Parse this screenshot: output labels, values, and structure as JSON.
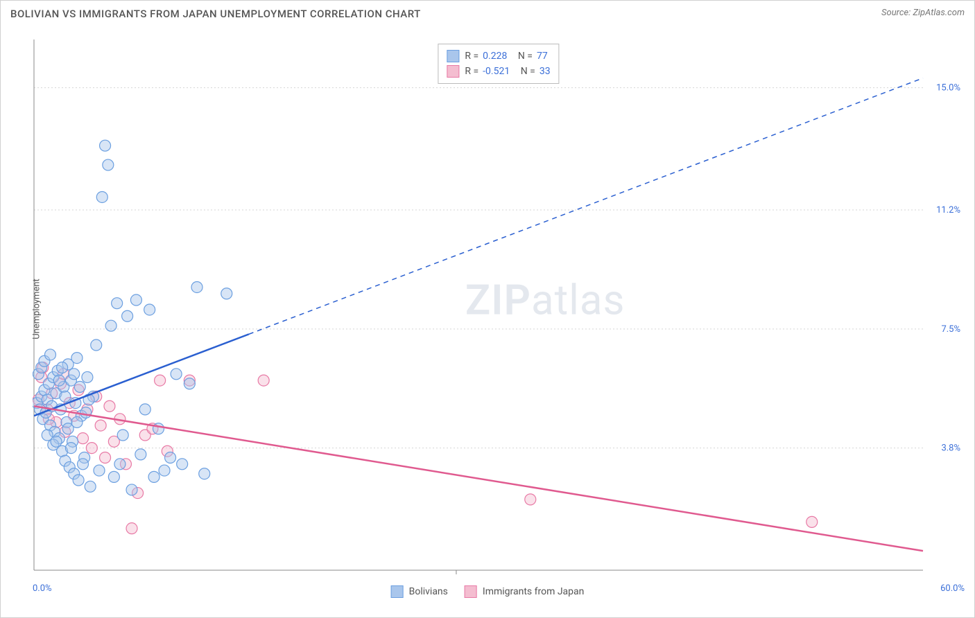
{
  "header": {
    "title": "BOLIVIAN VS IMMIGRANTS FROM JAPAN UNEMPLOYMENT CORRELATION CHART",
    "source_prefix": "Source: ",
    "source_name": "ZipAtlas.com"
  },
  "watermark": {
    "left": "ZIP",
    "right": "atlas"
  },
  "chart": {
    "type": "scatter-with-trend",
    "background_color": "#ffffff",
    "grid_color": "#d5d5d5",
    "axis_color": "#888888",
    "y_axis_label": "Unemployment",
    "xlim": [
      0,
      60
    ],
    "ylim": [
      0,
      16.5
    ],
    "x_ticks_pct": [
      0,
      60
    ],
    "x_tick_labels": [
      "0.0%",
      "60.0%"
    ],
    "y_ticks_pct": [
      3.8,
      7.5,
      11.2,
      15.0
    ],
    "y_tick_labels": [
      "3.8%",
      "7.5%",
      "11.2%",
      "15.0%"
    ],
    "x_minor_tick_at": 28.5,
    "marker_radius": 8,
    "series": [
      {
        "key": "bolivians",
        "name": "Bolivians",
        "fill": "#a9c6ec",
        "stroke": "#6b9fe0",
        "trend_color": "#2a5fd0",
        "r_label": "R  =",
        "r_value": "0.228",
        "n_label": "N  =",
        "n_value": "77",
        "trend": {
          "x1": 0,
          "y1": 4.8,
          "x2": 60,
          "y2": 15.3,
          "solid_until_x": 14.5
        },
        "points": [
          [
            0.2,
            5.2
          ],
          [
            0.4,
            5.0
          ],
          [
            0.5,
            5.4
          ],
          [
            0.6,
            4.7
          ],
          [
            0.7,
            5.6
          ],
          [
            0.8,
            4.9
          ],
          [
            0.9,
            5.3
          ],
          [
            1.0,
            5.8
          ],
          [
            1.1,
            4.5
          ],
          [
            1.2,
            5.1
          ],
          [
            1.3,
            6.0
          ],
          [
            1.4,
            4.3
          ],
          [
            1.5,
            5.5
          ],
          [
            1.6,
            6.2
          ],
          [
            1.7,
            4.1
          ],
          [
            1.8,
            5.0
          ],
          [
            1.9,
            3.7
          ],
          [
            2.0,
            5.7
          ],
          [
            2.1,
            3.4
          ],
          [
            2.2,
            4.6
          ],
          [
            2.3,
            6.4
          ],
          [
            2.4,
            3.2
          ],
          [
            2.5,
            5.9
          ],
          [
            2.6,
            4.0
          ],
          [
            2.7,
            3.0
          ],
          [
            2.8,
            5.2
          ],
          [
            2.9,
            6.6
          ],
          [
            3.0,
            2.8
          ],
          [
            3.2,
            4.8
          ],
          [
            3.4,
            3.5
          ],
          [
            3.6,
            6.0
          ],
          [
            3.8,
            2.6
          ],
          [
            4.0,
            5.4
          ],
          [
            4.2,
            7.0
          ],
          [
            4.4,
            3.1
          ],
          [
            4.6,
            11.6
          ],
          [
            4.8,
            13.2
          ],
          [
            5.0,
            12.6
          ],
          [
            5.2,
            7.6
          ],
          [
            5.4,
            2.9
          ],
          [
            5.6,
            8.3
          ],
          [
            5.8,
            3.3
          ],
          [
            6.0,
            4.2
          ],
          [
            6.3,
            7.9
          ],
          [
            6.6,
            2.5
          ],
          [
            6.9,
            8.4
          ],
          [
            7.2,
            3.6
          ],
          [
            7.5,
            5.0
          ],
          [
            7.8,
            8.1
          ],
          [
            8.1,
            2.9
          ],
          [
            8.4,
            4.4
          ],
          [
            8.8,
            3.1
          ],
          [
            9.2,
            3.5
          ],
          [
            9.6,
            6.1
          ],
          [
            10.0,
            3.3
          ],
          [
            10.5,
            5.8
          ],
          [
            11.0,
            8.8
          ],
          [
            11.5,
            3.0
          ],
          [
            13.0,
            8.6
          ],
          [
            0.3,
            6.1
          ],
          [
            0.5,
            6.3
          ],
          [
            0.7,
            6.5
          ],
          [
            0.9,
            4.2
          ],
          [
            1.1,
            6.7
          ],
          [
            1.3,
            3.9
          ],
          [
            1.5,
            4.0
          ],
          [
            1.7,
            5.9
          ],
          [
            1.9,
            6.3
          ],
          [
            2.1,
            5.4
          ],
          [
            2.3,
            4.4
          ],
          [
            2.5,
            3.8
          ],
          [
            2.7,
            6.1
          ],
          [
            2.9,
            4.6
          ],
          [
            3.1,
            5.7
          ],
          [
            3.3,
            3.3
          ],
          [
            3.5,
            4.9
          ],
          [
            3.7,
            5.3
          ]
        ]
      },
      {
        "key": "japan",
        "name": "Immigrants from Japan",
        "fill": "#f4bdd0",
        "stroke": "#e879a5",
        "trend_color": "#e05a8f",
        "r_label": "R  =",
        "r_value": "-0.521",
        "n_label": "N  =",
        "n_value": "33",
        "trend": {
          "x1": 0,
          "y1": 5.1,
          "x2": 60,
          "y2": 0.6,
          "solid_until_x": 60
        },
        "points": [
          [
            0.3,
            5.3
          ],
          [
            0.6,
            6.3
          ],
          [
            0.9,
            5.0
          ],
          [
            1.2,
            5.5
          ],
          [
            1.5,
            4.6
          ],
          [
            1.8,
            5.8
          ],
          [
            2.1,
            4.3
          ],
          [
            2.4,
            5.2
          ],
          [
            2.7,
            4.8
          ],
          [
            3.0,
            5.6
          ],
          [
            3.3,
            4.1
          ],
          [
            3.6,
            5.0
          ],
          [
            3.9,
            3.8
          ],
          [
            4.2,
            5.4
          ],
          [
            4.5,
            4.5
          ],
          [
            4.8,
            3.5
          ],
          [
            5.1,
            5.1
          ],
          [
            5.4,
            4.0
          ],
          [
            5.8,
            4.7
          ],
          [
            6.2,
            3.3
          ],
          [
            6.6,
            1.3
          ],
          [
            7.0,
            2.4
          ],
          [
            7.5,
            4.2
          ],
          [
            8.0,
            4.4
          ],
          [
            8.5,
            5.9
          ],
          [
            9.0,
            3.7
          ],
          [
            10.5,
            5.9
          ],
          [
            15.5,
            5.9
          ],
          [
            33.5,
            2.2
          ],
          [
            52.5,
            1.5
          ],
          [
            0.5,
            6.0
          ],
          [
            1.0,
            4.7
          ],
          [
            2.0,
            6.1
          ]
        ]
      }
    ]
  }
}
